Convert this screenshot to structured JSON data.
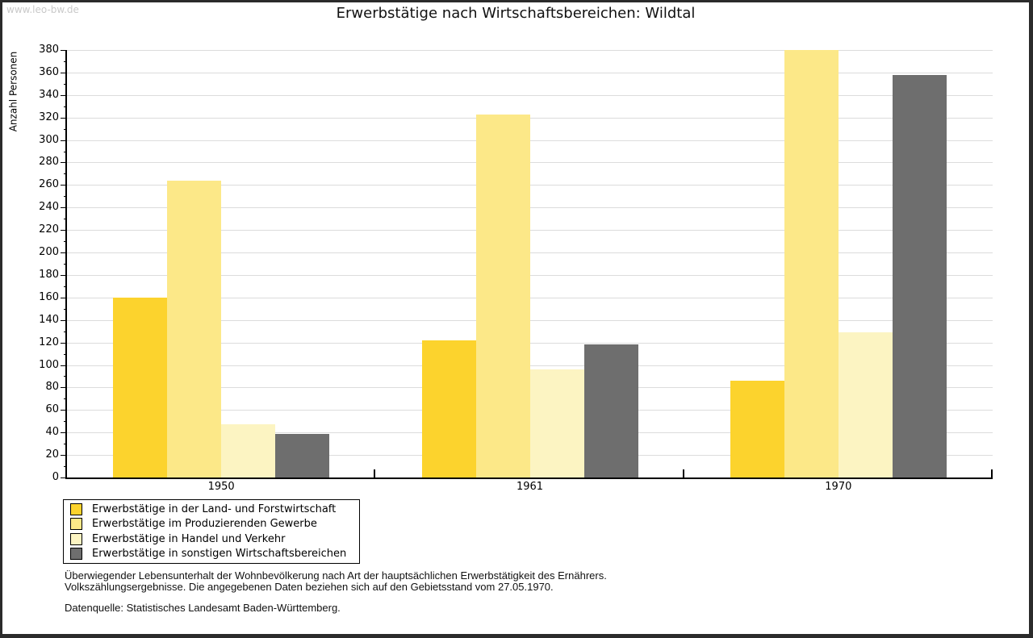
{
  "watermark": "www.leo-bw.de",
  "title": "Erwerbstätige nach Wirtschaftsbereichen: Wildtal",
  "footnote": {
    "line1": "Überwiegender Lebensunterhalt der Wohnbevölkerung nach Art der hauptsächlichen Erwerbstätigkeit des Ernährers.",
    "line2": "Volkszählungsergebnisse. Die angegebenen Daten beziehen sich auf den Gebietsstand vom 27.05.1970.",
    "line3": "Datenquelle: Statistisches Landesamt Baden-Württemberg."
  },
  "chart_data": {
    "type": "bar",
    "title": "Erwerbstätige nach Wirtschaftsbereichen: Wildtal",
    "xlabel": "",
    "ylabel": "Anzahl Personen",
    "categories": [
      "1950",
      "1961",
      "1970"
    ],
    "series": [
      {
        "name": "Erwerbstätige in der Land- und Forstwirtschaft",
        "color": "#fcd32d",
        "values": [
          160,
          122,
          86
        ]
      },
      {
        "name": "Erwerbstätige im Produzierenden Gewerbe",
        "color": "#fce888",
        "values": [
          264,
          323,
          380
        ]
      },
      {
        "name": "Erwerbstätige in Handel und Verkehr",
        "color": "#fcf4c2",
        "values": [
          47,
          96,
          129
        ]
      },
      {
        "name": "Erwerbstätige in sonstigen Wirtschaftsbereichen",
        "color": "#6e6e6e",
        "values": [
          39,
          118,
          358
        ]
      }
    ],
    "ylim": [
      0,
      380
    ],
    "ytick_step": 20,
    "ytick_minor_step": 10,
    "grid": true,
    "legend_position": "bottom-left",
    "colors": {
      "gridline": "#dcdcdc",
      "axis": "#000000",
      "watermark": "#c9c9c9"
    }
  }
}
